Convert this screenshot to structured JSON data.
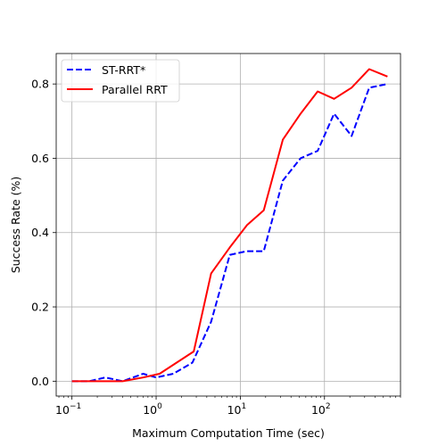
{
  "chart_data": {
    "type": "line",
    "xlabel": "Maximum Computation Time (sec)",
    "ylabel": "Success Rate (%)",
    "xscale": "log",
    "xlim": [
      0.065,
      800
    ],
    "ylim": [
      -0.04,
      0.882
    ],
    "xticks": [
      {
        "value": 0.1,
        "base": "10",
        "exp": "−1"
      },
      {
        "value": 1,
        "base": "10",
        "exp": "0"
      },
      {
        "value": 10,
        "base": "10",
        "exp": "1"
      },
      {
        "value": 100,
        "base": "10",
        "exp": "2"
      }
    ],
    "yticks": [
      0.0,
      0.2,
      0.4,
      0.6,
      0.8
    ],
    "ytick_labels": [
      "0.0",
      "0.2",
      "0.4",
      "0.6",
      "0.8"
    ],
    "grid": true,
    "legend_position": "top-left",
    "series": [
      {
        "name": "ST-RRT*",
        "color": "#0000ff",
        "dash": "dashed",
        "x": [
          0.1,
          0.16,
          0.25,
          0.4,
          0.7,
          1.0,
          1.6,
          2.7,
          4.5,
          7.5,
          12,
          19,
          32,
          52,
          83,
          130,
          210,
          340,
          560
        ],
        "y": [
          0.0,
          0.0,
          0.01,
          0.0,
          0.02,
          0.01,
          0.02,
          0.05,
          0.16,
          0.34,
          0.35,
          0.35,
          0.54,
          0.6,
          0.62,
          0.72,
          0.66,
          0.79,
          0.8
        ]
      },
      {
        "name": "Parallel RRT",
        "color": "#ff0000",
        "dash": "solid",
        "x": [
          0.1,
          0.16,
          0.4,
          0.7,
          1.1,
          2.8,
          4.5,
          7.5,
          12,
          19,
          32,
          52,
          83,
          130,
          210,
          340,
          560
        ],
        "y": [
          0.0,
          0.0,
          0.0,
          0.01,
          0.02,
          0.08,
          0.29,
          0.36,
          0.42,
          0.46,
          0.65,
          0.72,
          0.78,
          0.76,
          0.79,
          0.84,
          0.82
        ]
      }
    ]
  }
}
